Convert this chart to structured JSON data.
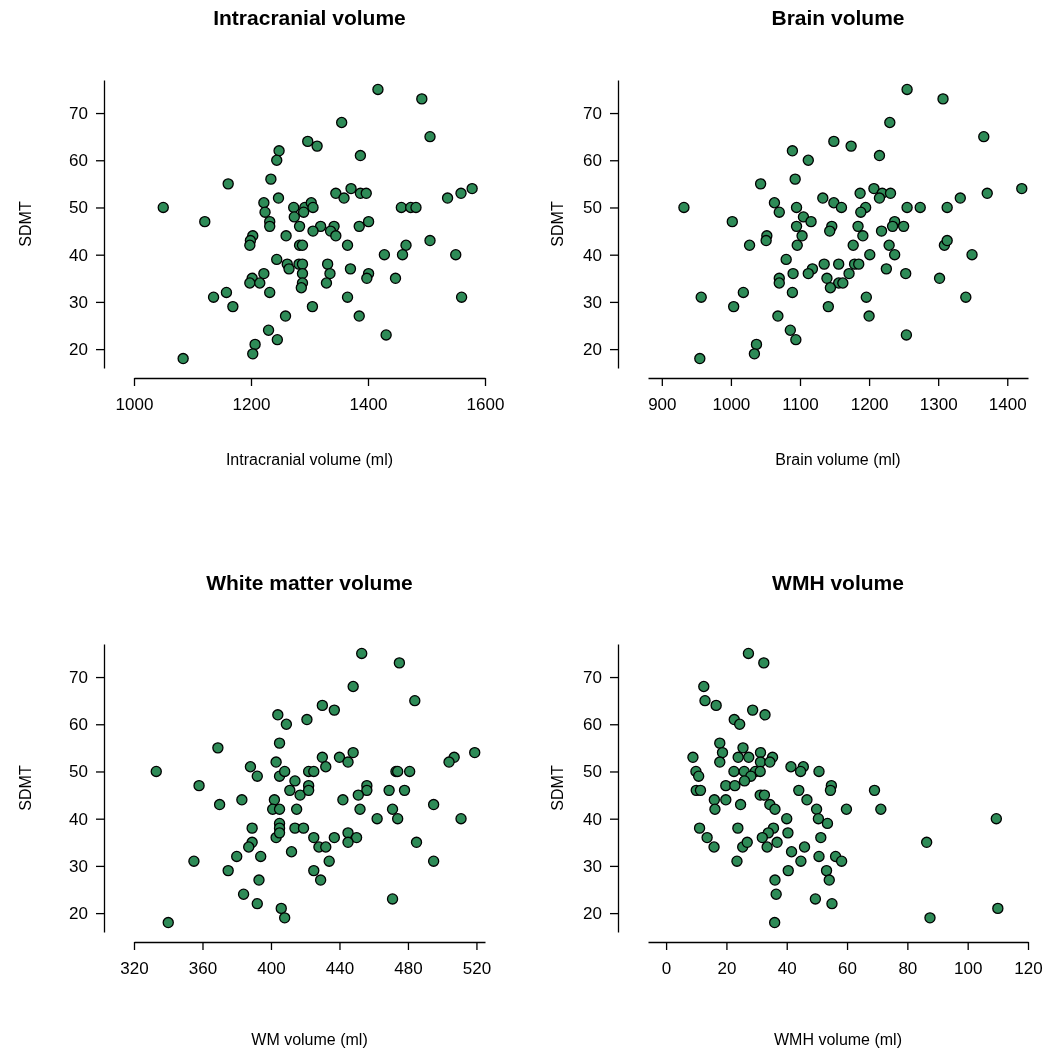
{
  "chart_data": [
    {
      "type": "scatter",
      "title": "Intracranial volume",
      "xlabel": "Intracranial volume (ml)",
      "ylabel": "SDMT",
      "marker": "circle",
      "grid": false,
      "xlim": [
        1000,
        1600
      ],
      "xticks": [
        1000,
        1200,
        1400,
        1600
      ],
      "ylim": [
        16,
        77
      ],
      "yticks": [
        20,
        30,
        40,
        50,
        60,
        70
      ],
      "series": [
        {
          "color": "#2e8b57",
          "x": [
            1417,
            1492,
            1355,
            1506,
            1297,
            1313,
            1248,
            1244,
            1387,
            1234,
            1161,
            1345,
            1371,
            1387,
            1397,
            1359,
            1247,
            1578,
            1559,
            1536,
            1050,
            1222,
            1224,
            1273,
            1292,
            1303,
            1306,
            1290,
            1274,
            1457,
            1473,
            1482,
            1121,
            1232,
            1232,
            1283,
            1319,
            1306,
            1342,
            1336,
            1345,
            1385,
            1401,
            1203,
            1199,
            1198,
            1260,
            1283,
            1288,
            1365,
            1465,
            1506,
            1428,
            1459,
            1550,
            1244,
            1262,
            1265,
            1282,
            1288,
            1331,
            1370,
            1222,
            1288,
            1335,
            1401,
            1398,
            1202,
            1198,
            1215,
            1288,
            1286,
            1329,
            1447,
            1158,
            1232,
            1136,
            1365,
            1560,
            1169,
            1305,
            1259,
            1385,
            1230,
            1431,
            1245,
            1207,
            1203,
            1084
          ],
          "values": [
            75,
            73,
            68,
            65,
            64,
            63,
            62,
            60,
            61,
            56,
            55,
            53,
            54,
            53,
            53,
            52,
            52,
            54,
            53,
            52,
            50,
            51,
            49,
            50,
            50,
            51,
            50,
            49,
            48,
            50,
            50,
            50,
            47,
            47,
            46,
            46,
            46,
            45,
            46,
            45,
            44,
            46,
            47,
            44,
            43,
            42,
            44,
            42,
            42,
            42,
            42,
            43,
            40,
            40,
            40,
            39,
            38,
            37,
            38,
            38,
            38,
            37,
            36,
            36,
            36,
            36,
            35,
            35,
            34,
            34,
            34,
            33,
            34,
            35,
            32,
            32,
            31,
            31,
            31,
            29,
            29,
            27,
            27,
            24,
            23,
            22,
            21,
            19,
            18
          ]
        }
      ]
    },
    {
      "type": "scatter",
      "title": "Brain volume",
      "xlabel": "Brain volume (ml)",
      "ylabel": "SDMT",
      "marker": "circle",
      "grid": false,
      "xlim": [
        880,
        1430
      ],
      "xticks": [
        900,
        1000,
        1100,
        1200,
        1300,
        1400
      ],
      "ylim": [
        16,
        77
      ],
      "yticks": [
        20,
        30,
        40,
        50,
        60,
        70
      ],
      "series": [
        {
          "color": "#2e8b57",
          "x": [
            1255,
            1307,
            1230,
            1366,
            1149,
            1174,
            1089,
            1112,
            1215,
            1093,
            1043,
            1187,
            1207,
            1219,
            1231,
            1215,
            1133,
            1421,
            1371,
            1332,
            932,
            1063,
            1070,
            1095,
            1149,
            1160,
            1195,
            1188,
            1105,
            1255,
            1274,
            1313,
            1002,
            1116,
            1095,
            1146,
            1184,
            1143,
            1237,
            1234,
            1250,
            1218,
            1191,
            1103,
            1052,
            1051,
            1027,
            1096,
            1177,
            1229,
            1309,
            1313,
            1201,
            1237,
            1349,
            1080,
            1135,
            1156,
            1179,
            1185,
            1118,
            1112,
            1090,
            1171,
            1225,
            1253,
            1302,
            1070,
            1070,
            1139,
            1156,
            1162,
            1144,
            1089,
            1018,
            957,
            1196,
            1340,
            1004,
            1141,
            1068,
            1200,
            1086,
            1254,
            1094,
            1037,
            1034,
            955
          ],
          "values": [
            75,
            73,
            68,
            65,
            64,
            63,
            62,
            60,
            61,
            56,
            55,
            53,
            54,
            53,
            53,
            52,
            52,
            54,
            53,
            52,
            50,
            51,
            49,
            50,
            51,
            50,
            50,
            49,
            48,
            50,
            50,
            50,
            47,
            47,
            46,
            46,
            46,
            45,
            47,
            46,
            46,
            45,
            44,
            44,
            44,
            43,
            42,
            42,
            42,
            42,
            42,
            43,
            40,
            40,
            40,
            39,
            38,
            38,
            38,
            38,
            37,
            36,
            36,
            36,
            37,
            36,
            35,
            35,
            34,
            35,
            34,
            34,
            33,
            32,
            32,
            31,
            31,
            31,
            29,
            29,
            27,
            27,
            24,
            23,
            22,
            21,
            19,
            18
          ]
        }
      ]
    },
    {
      "type": "scatter",
      "title": "White matter volume",
      "xlabel": "WM volume (ml)",
      "ylabel": "SDMT",
      "marker": "circle",
      "grid": false,
      "xlim": [
        320,
        525
      ],
      "xticks": [
        320,
        360,
        400,
        440,
        480,
        520
      ],
      "ylim": [
        16,
        77
      ],
      "yticks": [
        20,
        30,
        40,
        50,
        60,
        70
      ],
      "series": [
        {
          "color": "#2e8b57",
          "x": [
            453,
            475,
            448,
            484,
            430,
            437,
            404,
            409,
            421,
            405,
            369,
            430,
            440,
            448,
            445,
            432,
            403,
            519,
            507,
            504,
            333,
            388,
            392,
            405,
            408,
            422,
            425,
            473,
            474,
            481,
            358,
            414,
            411,
            417,
            422,
            422,
            456,
            456,
            451,
            469,
            478,
            442,
            383,
            370,
            402,
            401,
            405,
            415,
            452,
            471,
            495,
            462,
            474,
            511,
            405,
            405,
            389,
            414,
            419,
            403,
            405,
            425,
            437,
            445,
            450,
            445,
            485,
            389,
            387,
            428,
            432,
            412,
            380,
            394,
            355,
            434,
            495,
            375,
            425,
            393,
            429,
            384,
            471,
            392,
            406,
            408,
            340
          ],
          "values": [
            75,
            73,
            68,
            65,
            64,
            63,
            62,
            60,
            61,
            56,
            55,
            53,
            53,
            54,
            52,
            51,
            52,
            54,
            53,
            52,
            50,
            51,
            49,
            49,
            50,
            50,
            50,
            50,
            50,
            50,
            47,
            48,
            46,
            45,
            47,
            46,
            47,
            46,
            45,
            46,
            46,
            44,
            44,
            43,
            44,
            42,
            42,
            42,
            42,
            42,
            43,
            40,
            40,
            40,
            39,
            38,
            38,
            38,
            38,
            36,
            37,
            36,
            36,
            37,
            36,
            35,
            35,
            35,
            34,
            34,
            34,
            33,
            32,
            32,
            31,
            31,
            31,
            29,
            29,
            27,
            27,
            24,
            23,
            22,
            21,
            19,
            18
          ]
        }
      ]
    },
    {
      "type": "scatter",
      "title": "WMH volume",
      "xlabel": "WMH volume (ml)",
      "ylabel": "SDMT",
      "marker": "circle",
      "grid": false,
      "xlim": [
        -6,
        120
      ],
      "xticks": [
        0,
        20,
        40,
        60,
        80,
        100,
        120
      ],
      "ylim": [
        16,
        77
      ],
      "yticks": [
        20,
        30,
        40,
        50,
        60,
        70
      ],
      "series": [
        {
          "color": "#2e8b57",
          "x": [
            27.3,
            32.4,
            12.5,
            12.9,
            16.6,
            28.7,
            32.8,
            22.6,
            24.4,
            17.8,
            25.5,
            18.7,
            31.3,
            8.9,
            23.9,
            27.4,
            35.3,
            17.8,
            31.3,
            34.4,
            41.4,
            45.5,
            9.9,
            22.5,
            25.9,
            29.6,
            31.2,
            44.6,
            50.7,
            10.8,
            28.1,
            26,
            19.8,
            22.8,
            54.8,
            10,
            11.4,
            44,
            54.5,
            69.1,
            31.2,
            32.6,
            16,
            19.8,
            46.7,
            16.2,
            24.7,
            34.4,
            36.1,
            49.9,
            59.8,
            71.2,
            40,
            50.5,
            109.5,
            53.5,
            11.1,
            23.8,
            35.6,
            33.9,
            40.4,
            13.6,
            31.9,
            51.3,
            15.9,
            25.4,
            26.9,
            36.8,
            33.5,
            86.4,
            45.9,
            41.6,
            50.7,
            56.2,
            23.5,
            44.7,
            58.2,
            40.5,
            53.2,
            36.1,
            54.1,
            36.5,
            49.5,
            55,
            110,
            87.5,
            36
          ],
          "values": [
            75,
            73,
            68,
            65,
            64,
            63,
            62,
            61,
            60,
            56,
            55,
            54,
            54,
            53,
            53,
            53,
            53,
            52,
            52,
            52,
            51,
            51,
            50,
            50,
            50,
            50,
            50,
            50,
            50,
            49,
            49,
            48,
            47,
            47,
            47,
            46,
            46,
            46,
            46,
            46,
            45,
            45,
            44,
            44,
            44,
            42,
            43,
            43,
            42,
            42,
            42,
            42,
            40,
            40,
            40,
            39,
            38,
            38,
            38,
            37,
            37,
            36,
            36,
            36,
            34,
            34,
            35,
            35,
            34,
            35,
            34,
            33,
            32,
            32,
            31,
            31,
            31,
            29,
            29,
            27,
            27,
            24,
            23,
            22,
            21,
            19,
            18
          ]
        }
      ]
    }
  ]
}
